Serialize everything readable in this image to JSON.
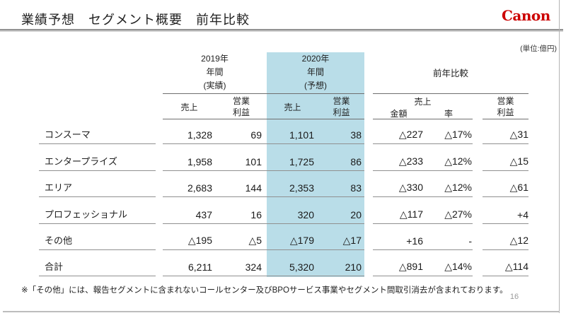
{
  "header": {
    "title": "業績予想　セグメント概要　前年比較",
    "brand": "Canon",
    "unit": "(単位:億円)"
  },
  "table": {
    "group_2019": {
      "l1": "2019年",
      "l2": "年間",
      "l3": "(実績)",
      "sales": "売上",
      "profit1": "営業",
      "profit2": "利益"
    },
    "group_2020": {
      "l1": "2020年",
      "l2": "年間",
      "l3": "(予想)",
      "sales": "売上",
      "profit1": "営業",
      "profit2": "利益"
    },
    "group_comp": {
      "title": "前年比較",
      "sales": "売上",
      "amount": "金額",
      "rate": "率",
      "profit1": "営業",
      "profit2": "利益"
    },
    "rows": [
      {
        "label": "コンスーマ",
        "s19": "1,328",
        "p19": "69",
        "s20": "1,101",
        "p20": "38",
        "amt": "△227",
        "rate": "△17%",
        "prf": "△31"
      },
      {
        "label": "エンタープライズ",
        "s19": "1,958",
        "p19": "101",
        "s20": "1,725",
        "p20": "86",
        "amt": "△233",
        "rate": "△12%",
        "prf": "△15"
      },
      {
        "label": "エリア",
        "s19": "2,683",
        "p19": "144",
        "s20": "2,353",
        "p20": "83",
        "amt": "△330",
        "rate": "△12%",
        "prf": "△61"
      },
      {
        "label": "プロフェッショナル",
        "s19": "437",
        "p19": "16",
        "s20": "320",
        "p20": "20",
        "amt": "△117",
        "rate": "△27%",
        "prf": "+4"
      },
      {
        "label": "その他",
        "s19": "△195",
        "p19": "△5",
        "s20": "△179",
        "p20": "△17",
        "amt": "+16",
        "rate": "-",
        "prf": "△12"
      },
      {
        "label": "合計",
        "s19": "6,211",
        "p19": "324",
        "s20": "5,320",
        "p20": "210",
        "amt": "△891",
        "rate": "△14%",
        "prf": "△114"
      }
    ]
  },
  "footnote": "※「その他」には、報告セグメントに含まれないコールセンター及びBPOサービス事業やセグメント間取引消去が含まれております。",
  "page_number": "16",
  "colors": {
    "highlight_blue": "#b9dde8",
    "brand_red": "#cc0000",
    "rule_gray": "#909090"
  }
}
